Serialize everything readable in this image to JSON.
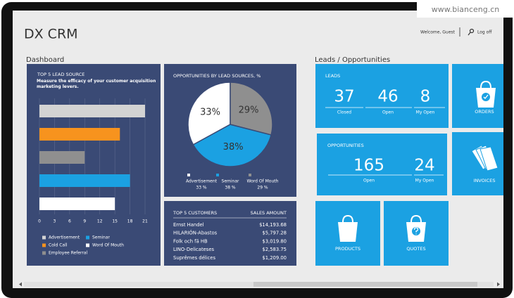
{
  "watermark": "www.bianceng.cn",
  "header": {
    "title": "DX CRM",
    "welcome": "Welcome,  Guest",
    "logoff": "Log off"
  },
  "dashboard": {
    "title": "Dashboard",
    "lead_source": {
      "type": "bar",
      "orientation": "horizontal",
      "title": "TOP 5 LEAD SOURCE",
      "subtitle": "Measure the efficacy of your customer acquisition marketing levers.",
      "categories": [
        "Advertisement",
        "Cold Call",
        "Employee Referral",
        "Seminar",
        "Word Of Mouth"
      ],
      "values": [
        21,
        16,
        9,
        18,
        15
      ],
      "colors": [
        "#d3d3d3",
        "#f7931e",
        "#8f8f8f",
        "#1ba1e2",
        "#ffffff"
      ],
      "xlim": [
        0,
        21
      ],
      "xticks": [
        0,
        3,
        6,
        9,
        12,
        15,
        18,
        21
      ],
      "grid": true
    },
    "opportunities": {
      "type": "pie",
      "title": "OPPORTUNITIES BY LEAD SOURCES, %",
      "categories": [
        "Advertisement",
        "Seminar",
        "Word Of Mouth"
      ],
      "values": [
        33,
        38,
        29
      ],
      "value_labels": [
        "33%",
        "38%",
        "29%"
      ],
      "legend_labels": [
        "33 %",
        "38 %",
        "29 %"
      ],
      "colors": [
        "#ffffff",
        "#1ba1e2",
        "#8f8f8f"
      ]
    },
    "customers": {
      "columns": [
        "TOP 5 CUSTOMERS",
        "SALES AMOUNT"
      ],
      "rows": [
        [
          "Ernst Handel",
          "$14,193.68"
        ],
        [
          "HILARIÓN-Abastos",
          "$5,797.28"
        ],
        [
          "Folk och fä HB",
          "$3,019.80"
        ],
        [
          "LINO-Delicateses",
          "$2,583.75"
        ],
        [
          "Suprêmes délices",
          "$1,209.00"
        ]
      ]
    }
  },
  "leads_opportunities": {
    "title": "Leads / Opportunities",
    "leads": {
      "title": "LEADS",
      "values": [
        37,
        46,
        8
      ],
      "labels": [
        "Closed",
        "Open",
        "My Open"
      ]
    },
    "opportunities": {
      "title": "OPPORTUNITIES",
      "values": [
        165,
        24
      ],
      "labels": [
        "Open",
        "My Open"
      ]
    },
    "tiles": [
      "ORDERS",
      "INVOICES",
      "PRODUCTS",
      "QUOTES"
    ]
  }
}
